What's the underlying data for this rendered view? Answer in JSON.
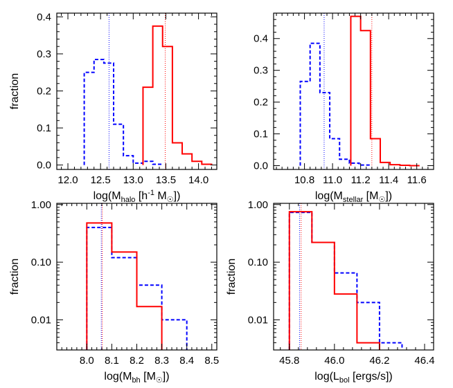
{
  "colors": {
    "red": "#ff0000",
    "blue": "#0000ff",
    "axis": "#000000"
  },
  "chart_data": [
    {
      "type": "histogram",
      "panel": "top-left",
      "xlabel": {
        "pre": "log(M",
        "sub": "halo",
        "post": " [h",
        "sup": "-1",
        "post2": " M",
        "sym": "☉",
        "post3": "])"
      },
      "ylabel": "fraction",
      "xlim": [
        11.83,
        14.28
      ],
      "ylim": [
        -0.012,
        0.41
      ],
      "yscale": "linear",
      "xticks": [
        12.0,
        12.5,
        13.0,
        13.5,
        14.0
      ],
      "xtick_labels": [
        "12.0",
        "12.5",
        "13.0",
        "13.5",
        "14.0"
      ],
      "yticks": [
        0.0,
        0.1,
        0.2,
        0.3,
        0.4
      ],
      "ytick_labels": [
        "0.0",
        "0.1",
        "0.2",
        "0.3",
        "0.4"
      ],
      "series": [
        {
          "color": "#0000ff",
          "style": "dashed",
          "edges": [
            12.25,
            12.4,
            12.55,
            12.7,
            12.85,
            13.0,
            13.15,
            13.3,
            13.45
          ],
          "values": [
            0.25,
            0.285,
            0.275,
            0.11,
            0.025,
            0.005,
            0.01,
            0.002
          ],
          "median": 12.63
        },
        {
          "color": "#ff0000",
          "style": "solid",
          "edges": [
            13.15,
            13.3,
            13.45,
            13.6,
            13.75,
            13.9,
            14.05,
            14.2
          ],
          "values": [
            0.21,
            0.375,
            0.32,
            0.06,
            0.03,
            0.01,
            0.002
          ],
          "median": 13.49
        }
      ]
    },
    {
      "type": "histogram",
      "panel": "top-right",
      "xlabel": {
        "pre": "log(M",
        "sub": "stellar",
        "post": " [M",
        "sym": "☉",
        "post3": "])"
      },
      "ylabel": "",
      "xlim": [
        10.58,
        11.72
      ],
      "ylim": [
        -0.012,
        0.48
      ],
      "yscale": "linear",
      "xticks": [
        10.8,
        11.0,
        11.2,
        11.4,
        11.6
      ],
      "xtick_labels": [
        "10.8",
        "11.0",
        "11.2",
        "11.4",
        "11.6"
      ],
      "yticks": [
        0.0,
        0.1,
        0.2,
        0.3,
        0.4
      ],
      "ytick_labels": [
        "0.0",
        "0.1",
        "0.2",
        "0.3",
        "0.4"
      ],
      "series": [
        {
          "color": "#0000ff",
          "style": "dashed",
          "edges": [
            10.77,
            10.84,
            10.91,
            10.98,
            11.05,
            11.12,
            11.19,
            11.26
          ],
          "values": [
            0.265,
            0.385,
            0.23,
            0.085,
            0.02,
            0.008,
            0.002
          ],
          "median": 10.94
        },
        {
          "color": "#ff0000",
          "style": "solid",
          "edges": [
            11.13,
            11.2,
            11.27,
            11.34,
            11.41,
            11.48,
            11.55,
            11.62
          ],
          "values": [
            0.47,
            0.425,
            0.085,
            0.01,
            0.003,
            0.001,
            0.0
          ],
          "median": 11.28
        }
      ]
    },
    {
      "type": "histogram",
      "panel": "bottom-left",
      "xlabel": {
        "pre": "log(M",
        "sub": "bh",
        "post": " [M",
        "sym": "☉",
        "post3": "])"
      },
      "ylabel": "fraction",
      "xlim": [
        7.88,
        8.52
      ],
      "ylim": [
        0.003,
        1.05
      ],
      "yscale": "log",
      "xticks": [
        8.0,
        8.1,
        8.2,
        8.3,
        8.4,
        8.5
      ],
      "xtick_labels": [
        "8.0",
        "8.1",
        "8.2",
        "8.3",
        "8.4",
        "8.5"
      ],
      "yticks": [
        0.01,
        0.1,
        1.0
      ],
      "ytick_labels": [
        "0.01",
        "0.10",
        "1.00"
      ],
      "series": [
        {
          "color": "#0000ff",
          "style": "dashed",
          "edges": [
            8.0,
            8.05,
            8.1,
            8.2,
            8.3,
            8.4
          ],
          "values": [
            0.4,
            0.4,
            0.12,
            0.04,
            0.01
          ],
          "median": 8.058
        },
        {
          "color": "#ff0000",
          "style": "solid",
          "edges": [
            8.0,
            8.05,
            8.1,
            8.2,
            8.3
          ],
          "values": [
            0.48,
            0.48,
            0.15,
            0.017
          ],
          "median": 8.062
        }
      ]
    },
    {
      "type": "histogram",
      "panel": "bottom-right",
      "xlabel": {
        "pre": "log(L",
        "sub": "bol",
        "post": " [ergs/s])"
      },
      "ylabel": "fraction",
      "xlim": [
        45.73,
        46.44
      ],
      "ylim": [
        0.003,
        1.05
      ],
      "yscale": "log",
      "xticks": [
        45.8,
        46.0,
        46.2,
        46.4
      ],
      "xtick_labels": [
        "45.8",
        "46.0",
        "46.2",
        "46.4"
      ],
      "yticks": [
        0.01,
        0.1,
        1.0
      ],
      "ytick_labels": [
        "0.01",
        "0.10",
        "1.00"
      ],
      "series": [
        {
          "color": "#0000ff",
          "style": "dashed",
          "edges": [
            45.8,
            45.9,
            46.0,
            46.1,
            46.2,
            46.3
          ],
          "values": [
            0.73,
            0.22,
            0.065,
            0.02,
            0.004
          ],
          "median": 45.845
        },
        {
          "color": "#ff0000",
          "style": "solid",
          "edges": [
            45.8,
            45.9,
            46.0,
            46.1,
            46.2
          ],
          "values": [
            0.75,
            0.22,
            0.028,
            0.004
          ],
          "median": 45.852
        }
      ]
    }
  ]
}
